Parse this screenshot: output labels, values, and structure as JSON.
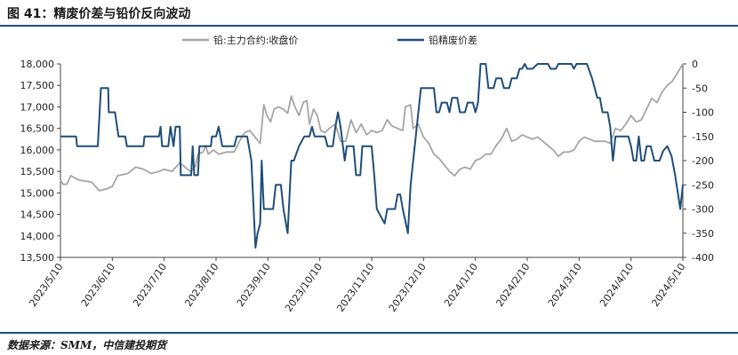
{
  "header": {
    "title": "图 41：精废价差与铅价反向波动"
  },
  "footer": {
    "source": "数据来源：SMM，中信建投期货"
  },
  "colors": {
    "series_left": "#a6a6a6",
    "series_right": "#1f4e79",
    "rule": "#1f4e79"
  },
  "chart_data": {
    "type": "line",
    "title": "",
    "legend_position": "top",
    "grid": false,
    "x_categories": [
      "2023/5/10",
      "2023/6/10",
      "2023/7/10",
      "2023/8/10",
      "2023/9/10",
      "2023/10/10",
      "2023/11/10",
      "2023/12/10",
      "2024/1/10",
      "2024/2/10",
      "2024/3/10",
      "2024/4/10",
      "2024/5/10"
    ],
    "y_left": {
      "min": 13500,
      "max": 18000,
      "ticks": [
        "13,500",
        "14,000",
        "14,500",
        "15,000",
        "15,500",
        "16,000",
        "16,500",
        "17,000",
        "17,500",
        "18,000"
      ]
    },
    "y_right": {
      "min": -400,
      "max": 0,
      "ticks": [
        "-400",
        "-350",
        "-300",
        "-250",
        "-200",
        "-150",
        "-100",
        "-50",
        "0"
      ]
    },
    "series": [
      {
        "name": "铅:主力合约:收盘价",
        "axis": "left",
        "points": [
          [
            0.0,
            15300
          ],
          [
            0.05,
            15200
          ],
          [
            0.12,
            15200
          ],
          [
            0.2,
            15400
          ],
          [
            0.35,
            15300
          ],
          [
            0.6,
            15250
          ],
          [
            0.75,
            15050
          ],
          [
            0.9,
            15100
          ],
          [
            1.0,
            15150
          ],
          [
            1.1,
            15400
          ],
          [
            1.3,
            15450
          ],
          [
            1.45,
            15600
          ],
          [
            1.6,
            15550
          ],
          [
            1.75,
            15450
          ],
          [
            1.9,
            15500
          ],
          [
            2.0,
            15550
          ],
          [
            2.15,
            15500
          ],
          [
            2.3,
            15700
          ],
          [
            2.5,
            15500
          ],
          [
            2.6,
            15600
          ],
          [
            2.65,
            15900
          ],
          [
            2.75,
            15950
          ],
          [
            2.8,
            16100
          ],
          [
            2.85,
            15900
          ],
          [
            2.95,
            16000
          ],
          [
            3.05,
            15900
          ],
          [
            3.2,
            15950
          ],
          [
            3.35,
            15950
          ],
          [
            3.45,
            16200
          ],
          [
            3.55,
            16400
          ],
          [
            3.65,
            16450
          ],
          [
            3.75,
            16300
          ],
          [
            3.85,
            16150
          ],
          [
            3.92,
            17050
          ],
          [
            3.98,
            16800
          ],
          [
            4.05,
            16650
          ],
          [
            4.12,
            16950
          ],
          [
            4.2,
            17000
          ],
          [
            4.3,
            16950
          ],
          [
            4.38,
            16850
          ],
          [
            4.45,
            17250
          ],
          [
            4.52,
            17000
          ],
          [
            4.6,
            16800
          ],
          [
            4.68,
            17100
          ],
          [
            4.75,
            17150
          ],
          [
            4.8,
            16600
          ],
          [
            4.88,
            16950
          ],
          [
            4.95,
            16800
          ],
          [
            5.02,
            16450
          ],
          [
            5.1,
            16400
          ],
          [
            5.18,
            16500
          ],
          [
            5.3,
            16600
          ],
          [
            5.4,
            16200
          ],
          [
            5.5,
            16200
          ],
          [
            5.6,
            16700
          ],
          [
            5.7,
            16400
          ],
          [
            5.8,
            16600
          ],
          [
            5.9,
            16350
          ],
          [
            6.0,
            16450
          ],
          [
            6.1,
            16400
          ],
          [
            6.2,
            16450
          ],
          [
            6.3,
            16700
          ],
          [
            6.4,
            16550
          ],
          [
            6.5,
            16500
          ],
          [
            6.6,
            16450
          ],
          [
            6.65,
            17000
          ],
          [
            6.75,
            17050
          ],
          [
            6.8,
            16500
          ],
          [
            6.9,
            16600
          ],
          [
            7.0,
            16300
          ],
          [
            7.1,
            16150
          ],
          [
            7.2,
            15900
          ],
          [
            7.3,
            15800
          ],
          [
            7.4,
            15650
          ],
          [
            7.5,
            15500
          ],
          [
            7.6,
            15400
          ],
          [
            7.7,
            15550
          ],
          [
            7.8,
            15600
          ],
          [
            7.9,
            15550
          ],
          [
            8.0,
            15750
          ],
          [
            8.1,
            15800
          ],
          [
            8.2,
            15900
          ],
          [
            8.3,
            15900
          ],
          [
            8.4,
            16100
          ],
          [
            8.5,
            16250
          ],
          [
            8.6,
            16500
          ],
          [
            8.7,
            16200
          ],
          [
            8.8,
            16250
          ],
          [
            8.9,
            16350
          ],
          [
            9.0,
            16300
          ],
          [
            9.1,
            16250
          ],
          [
            9.2,
            16300
          ],
          [
            9.3,
            16200
          ],
          [
            9.4,
            16100
          ],
          [
            9.5,
            16000
          ],
          [
            9.6,
            15850
          ],
          [
            9.7,
            15950
          ],
          [
            9.8,
            15950
          ],
          [
            9.9,
            16000
          ],
          [
            10.0,
            16200
          ],
          [
            10.1,
            16300
          ],
          [
            10.2,
            16250
          ],
          [
            10.3,
            16200
          ],
          [
            10.4,
            16200
          ],
          [
            10.5,
            16200
          ],
          [
            10.6,
            16150
          ],
          [
            10.7,
            16500
          ],
          [
            10.8,
            16450
          ],
          [
            10.9,
            16600
          ],
          [
            11.0,
            16800
          ],
          [
            11.1,
            16650
          ],
          [
            11.2,
            16700
          ],
          [
            11.3,
            16950
          ],
          [
            11.4,
            17200
          ],
          [
            11.5,
            17100
          ],
          [
            11.6,
            17350
          ],
          [
            11.7,
            17500
          ],
          [
            11.8,
            17600
          ],
          [
            11.9,
            17800
          ],
          [
            12.0,
            18000
          ]
        ]
      },
      {
        "name": "铅精废价差",
        "axis": "right",
        "points": [
          [
            0.0,
            -150
          ],
          [
            0.3,
            -150
          ],
          [
            0.32,
            -170
          ],
          [
            0.72,
            -170
          ],
          [
            0.78,
            -50
          ],
          [
            0.92,
            -50
          ],
          [
            0.93,
            -100
          ],
          [
            1.05,
            -100
          ],
          [
            1.12,
            -150
          ],
          [
            1.25,
            -150
          ],
          [
            1.28,
            -170
          ],
          [
            1.6,
            -170
          ],
          [
            1.62,
            -150
          ],
          [
            1.9,
            -150
          ],
          [
            1.93,
            -130
          ],
          [
            1.96,
            -170
          ],
          [
            2.08,
            -170
          ],
          [
            2.12,
            -130
          ],
          [
            2.18,
            -170
          ],
          [
            2.22,
            -130
          ],
          [
            2.3,
            -130
          ],
          [
            2.32,
            -230
          ],
          [
            2.52,
            -230
          ],
          [
            2.55,
            -170
          ],
          [
            2.58,
            -230
          ],
          [
            2.65,
            -230
          ],
          [
            2.68,
            -170
          ],
          [
            2.9,
            -170
          ],
          [
            2.92,
            -150
          ],
          [
            3.0,
            -150
          ],
          [
            3.05,
            -130
          ],
          [
            3.12,
            -170
          ],
          [
            3.35,
            -170
          ],
          [
            3.4,
            -150
          ],
          [
            3.6,
            -150
          ],
          [
            3.68,
            -200
          ],
          [
            3.76,
            -380
          ],
          [
            3.8,
            -350
          ],
          [
            3.85,
            -330
          ],
          [
            3.88,
            -200
          ],
          [
            3.92,
            -300
          ],
          [
            4.1,
            -300
          ],
          [
            4.15,
            -250
          ],
          [
            4.25,
            -250
          ],
          [
            4.3,
            -300
          ],
          [
            4.38,
            -350
          ],
          [
            4.45,
            -200
          ],
          [
            4.5,
            -200
          ],
          [
            4.6,
            -170
          ],
          [
            4.7,
            -150
          ],
          [
            4.8,
            -150
          ],
          [
            4.85,
            -130
          ],
          [
            4.9,
            -150
          ],
          [
            5.1,
            -150
          ],
          [
            5.15,
            -170
          ],
          [
            5.25,
            -170
          ],
          [
            5.3,
            -130
          ],
          [
            5.35,
            -100
          ],
          [
            5.4,
            -130
          ],
          [
            5.48,
            -200
          ],
          [
            5.52,
            -170
          ],
          [
            5.65,
            -170
          ],
          [
            5.7,
            -230
          ],
          [
            5.78,
            -230
          ],
          [
            5.82,
            -170
          ],
          [
            6.0,
            -170
          ],
          [
            6.05,
            -230
          ],
          [
            6.1,
            -300
          ],
          [
            6.25,
            -330
          ],
          [
            6.3,
            -300
          ],
          [
            6.45,
            -300
          ],
          [
            6.5,
            -270
          ],
          [
            6.55,
            -270
          ],
          [
            6.6,
            -300
          ],
          [
            6.7,
            -350
          ],
          [
            6.75,
            -250
          ],
          [
            6.8,
            -200
          ],
          [
            6.85,
            -150
          ],
          [
            6.9,
            -100
          ],
          [
            6.95,
            -50
          ],
          [
            7.2,
            -50
          ],
          [
            7.25,
            -100
          ],
          [
            7.3,
            -100
          ],
          [
            7.35,
            -80
          ],
          [
            7.45,
            -80
          ],
          [
            7.5,
            -100
          ],
          [
            7.55,
            -70
          ],
          [
            7.65,
            -70
          ],
          [
            7.7,
            -100
          ],
          [
            7.8,
            -100
          ],
          [
            7.85,
            -80
          ],
          [
            7.95,
            -80
          ],
          [
            8.0,
            -100
          ],
          [
            8.05,
            -80
          ],
          [
            8.1,
            0
          ],
          [
            8.2,
            0
          ],
          [
            8.25,
            -50
          ],
          [
            8.35,
            -50
          ],
          [
            8.4,
            -30
          ],
          [
            8.5,
            -30
          ],
          [
            8.55,
            -50
          ],
          [
            8.65,
            -50
          ],
          [
            8.7,
            -30
          ],
          [
            8.8,
            -30
          ],
          [
            8.85,
            -10
          ],
          [
            8.9,
            -10
          ],
          [
            8.95,
            0
          ],
          [
            9.0,
            -10
          ],
          [
            9.1,
            -10
          ],
          [
            9.2,
            0
          ],
          [
            9.4,
            0
          ],
          [
            9.45,
            -10
          ],
          [
            9.55,
            -10
          ],
          [
            9.6,
            0
          ],
          [
            9.85,
            0
          ],
          [
            9.9,
            -10
          ],
          [
            9.95,
            0
          ],
          [
            10.15,
            0
          ],
          [
            10.25,
            -30
          ],
          [
            10.35,
            -70
          ],
          [
            10.4,
            -70
          ],
          [
            10.45,
            -100
          ],
          [
            10.55,
            -100
          ],
          [
            10.6,
            -130
          ],
          [
            10.65,
            -200
          ],
          [
            10.7,
            -150
          ],
          [
            10.85,
            -150
          ],
          [
            10.95,
            -150
          ],
          [
            11.0,
            -170
          ],
          [
            11.05,
            -200
          ],
          [
            11.1,
            -200
          ],
          [
            11.15,
            -150
          ],
          [
            11.2,
            -200
          ],
          [
            11.25,
            -200
          ],
          [
            11.3,
            -170
          ],
          [
            11.38,
            -170
          ],
          [
            11.45,
            -200
          ],
          [
            11.55,
            -200
          ],
          [
            11.62,
            -180
          ],
          [
            11.7,
            -170
          ],
          [
            11.78,
            -190
          ],
          [
            11.85,
            -230
          ],
          [
            11.95,
            -300
          ],
          [
            12.0,
            -250
          ]
        ]
      }
    ]
  }
}
